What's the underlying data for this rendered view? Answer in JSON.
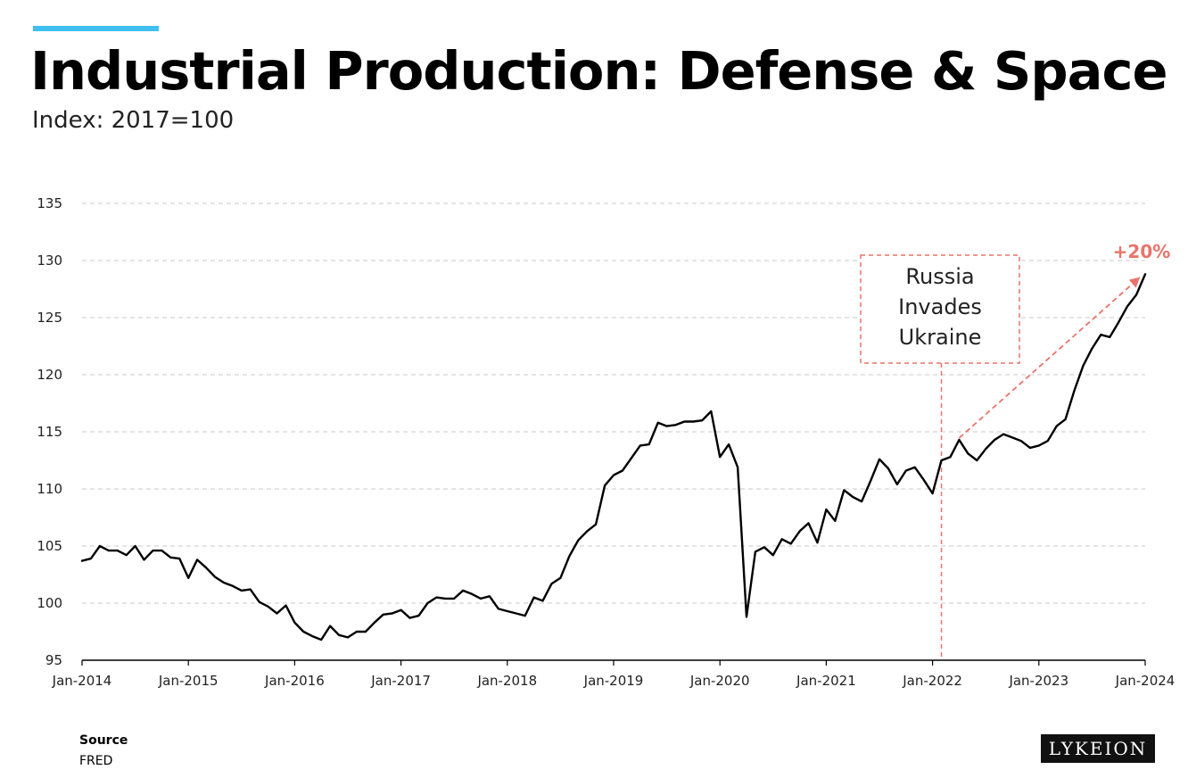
{
  "header": {
    "accent_color": "#3fbff0",
    "title": "Industrial Production: Defense & Space",
    "subtitle": "Index: 2017=100"
  },
  "footer": {
    "source_label": "Source",
    "source_value": "FRED",
    "logo_text": "LYKEION"
  },
  "chart_data": {
    "type": "line",
    "title": "Industrial Production: Defense & Space",
    "subtitle": "Index: 2017=100",
    "xlabel": "",
    "ylabel": "",
    "ylim": [
      95,
      135
    ],
    "yticks": [
      95,
      100,
      105,
      110,
      115,
      120,
      125,
      130,
      135
    ],
    "xlim": [
      "2014-01",
      "2024-01"
    ],
    "xticks": [
      "Jan-2014",
      "Jan-2015",
      "Jan-2016",
      "Jan-2017",
      "Jan-2018",
      "Jan-2019",
      "Jan-2020",
      "Jan-2021",
      "Jan-2022",
      "Jan-2023",
      "Jan-2024"
    ],
    "grid": "horizontal dashed",
    "line_color": "#000000",
    "annotation_color": "#e8746a",
    "series": [
      {
        "x": [
          "2014-01",
          "2014-02",
          "2014-03",
          "2014-04",
          "2014-05",
          "2014-06",
          "2014-07",
          "2014-08",
          "2014-09",
          "2014-10",
          "2014-11",
          "2014-12",
          "2015-01",
          "2015-02",
          "2015-03",
          "2015-04",
          "2015-05",
          "2015-06",
          "2015-07",
          "2015-08",
          "2015-09",
          "2015-10",
          "2015-11",
          "2015-12",
          "2016-01",
          "2016-02",
          "2016-03",
          "2016-04",
          "2016-05",
          "2016-06",
          "2016-07",
          "2016-08",
          "2016-09",
          "2016-10",
          "2016-11",
          "2016-12",
          "2017-01",
          "2017-02",
          "2017-03",
          "2017-04",
          "2017-05",
          "2017-06",
          "2017-07",
          "2017-08",
          "2017-09",
          "2017-10",
          "2017-11",
          "2017-12",
          "2018-01",
          "2018-02",
          "2018-03",
          "2018-04",
          "2018-05",
          "2018-06",
          "2018-07",
          "2018-08",
          "2018-09",
          "2018-10",
          "2018-11",
          "2018-12",
          "2019-01",
          "2019-02",
          "2019-03",
          "2019-04",
          "2019-05",
          "2019-06",
          "2019-07",
          "2019-08",
          "2019-09",
          "2019-10",
          "2019-11",
          "2019-12",
          "2020-01",
          "2020-02",
          "2020-03",
          "2020-04",
          "2020-05",
          "2020-06",
          "2020-07",
          "2020-08",
          "2020-09",
          "2020-10",
          "2020-11",
          "2020-12",
          "2021-01",
          "2021-02",
          "2021-03",
          "2021-04",
          "2021-05",
          "2021-06",
          "2021-07",
          "2021-08",
          "2021-09",
          "2021-10",
          "2021-11",
          "2021-12",
          "2022-01",
          "2022-02",
          "2022-03",
          "2022-04",
          "2022-05",
          "2022-06",
          "2022-07",
          "2022-08",
          "2022-09",
          "2022-10",
          "2022-11",
          "2022-12",
          "2023-01",
          "2023-02",
          "2023-03",
          "2023-04",
          "2023-05",
          "2023-06",
          "2023-07",
          "2023-08",
          "2023-09",
          "2023-10",
          "2023-11",
          "2023-12",
          "2024-01"
        ],
        "values": [
          103.7,
          103.9,
          105.0,
          104.6,
          104.6,
          104.2,
          105.0,
          103.8,
          104.6,
          104.6,
          104.0,
          103.9,
          102.2,
          103.8,
          103.1,
          102.3,
          101.8,
          101.5,
          101.1,
          101.2,
          100.1,
          99.7,
          99.1,
          99.8,
          98.3,
          97.5,
          97.1,
          96.8,
          98.0,
          97.2,
          97.0,
          97.5,
          97.5,
          98.3,
          99.0,
          99.1,
          99.4,
          98.7,
          98.9,
          100.0,
          100.5,
          100.4,
          100.4,
          101.1,
          100.8,
          100.4,
          100.6,
          99.5,
          99.3,
          99.1,
          98.9,
          100.5,
          100.2,
          101.7,
          102.2,
          104.1,
          105.5,
          106.3,
          106.9,
          110.3,
          111.2,
          111.6,
          112.7,
          113.8,
          113.9,
          115.8,
          115.5,
          115.6,
          115.9,
          115.9,
          116.0,
          116.8,
          112.8,
          113.9,
          111.9,
          98.8,
          104.5,
          104.9,
          104.2,
          105.6,
          105.2,
          106.3,
          107.0,
          105.3,
          108.2,
          107.2,
          109.9,
          109.3,
          108.9,
          110.7,
          112.6,
          111.8,
          110.4,
          111.6,
          111.9,
          110.8,
          109.6,
          112.5,
          112.8,
          114.3,
          113.1,
          112.5,
          113.5,
          114.3,
          114.8,
          114.5,
          114.2,
          113.6,
          113.8,
          114.2,
          115.5,
          116.1,
          118.6,
          120.8,
          122.3,
          123.5,
          123.3,
          124.6,
          126.0,
          127.0,
          128.8
        ]
      }
    ],
    "annotations": [
      {
        "type": "box",
        "text": [
          "Russia",
          "Invades",
          "Ukraine"
        ],
        "x": "2022-02"
      },
      {
        "type": "arrow",
        "text": "+20%",
        "from": {
          "x": "2022-04",
          "y": 114.3
        },
        "to": {
          "x": "2024-01",
          "y": 129.0
        }
      }
    ]
  }
}
